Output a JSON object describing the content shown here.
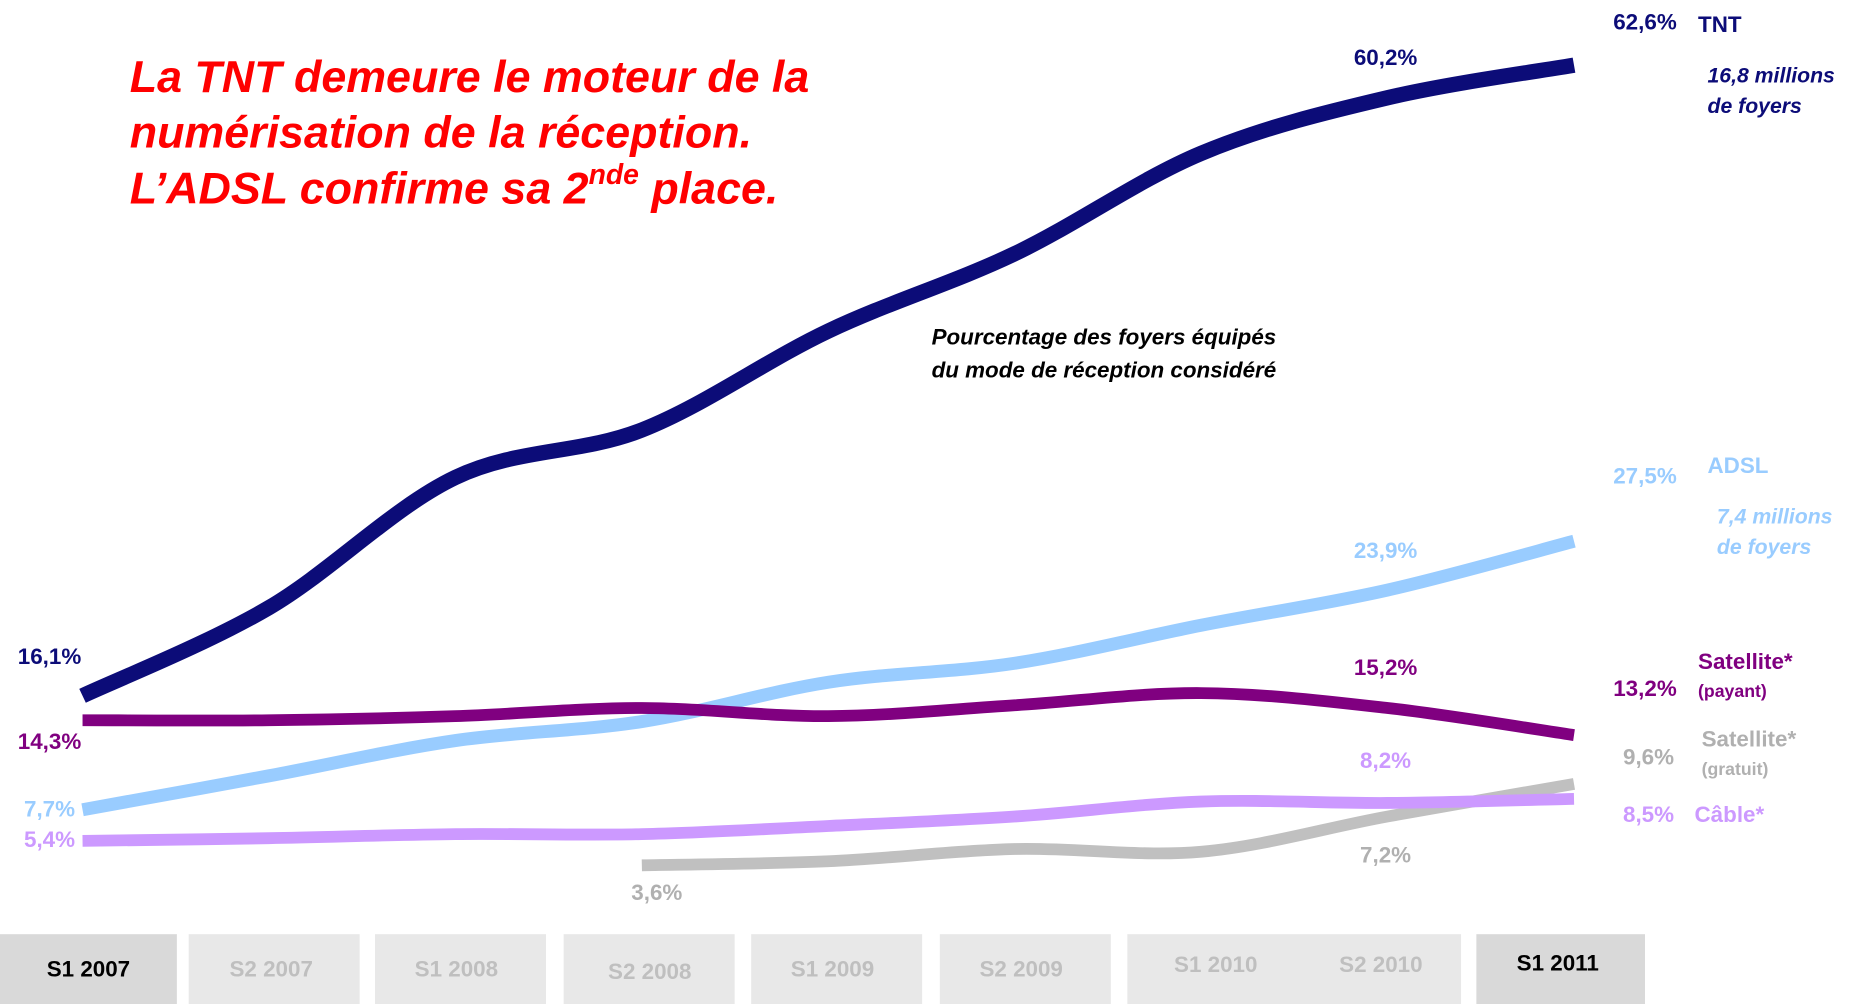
{
  "chart_data": {
    "type": "line",
    "title_lines": [
      "La TNT demeure le moteur de la",
      "numérisation de la réception."
    ],
    "title_last": [
      "L’ADSL confirme sa 2",
      "nde",
      " place."
    ],
    "subtitle_lines": [
      "Pourcentage des foyers équipés",
      "du mode de réception considéré"
    ],
    "categories": [
      "S1 2007",
      "S2 2007",
      "S1 2008",
      "S2 2008",
      "S1 2009",
      "S2 2009",
      "S1 2010",
      "S2 2010",
      "S1 2011"
    ],
    "highlighted": [
      0,
      8
    ],
    "series": [
      {
        "name": "TNT",
        "color": "#0c0c78",
        "note": [
          "16,8 millions",
          "de foyers"
        ],
        "values": [
          16.1,
          22.6,
          32.2,
          35.7,
          43.0,
          48.7,
          56.1,
          60.2,
          62.6
        ],
        "value_labels": [
          "16,1%",
          null,
          null,
          null,
          null,
          null,
          null,
          "60,2%",
          "62,6%"
        ]
      },
      {
        "name": "ADSL",
        "color": "#99ccff",
        "note": [
          "7,4 millions",
          "de foyers"
        ],
        "values": [
          7.7,
          10.2,
          12.8,
          14.2,
          17.1,
          18.5,
          21.3,
          23.9,
          27.5
        ],
        "value_labels": [
          "7,7%",
          null,
          null,
          null,
          null,
          null,
          null,
          "23,9%",
          "27,5%"
        ]
      },
      {
        "name": "Satellite*",
        "sub": "(payant)",
        "color": "#800080",
        "values": [
          14.3,
          14.3,
          14.6,
          15.2,
          14.6,
          15.4,
          16.3,
          15.2,
          13.2
        ],
        "value_labels": [
          "14,3%",
          null,
          null,
          null,
          null,
          null,
          null,
          "15,2%",
          "13,2%"
        ]
      },
      {
        "name": "Satellite*",
        "sub": "(gratuit)",
        "color": "#c0c0c0",
        "values": [
          null,
          null,
          null,
          3.6,
          3.9,
          4.8,
          4.6,
          7.2,
          9.6
        ],
        "value_labels": [
          null,
          null,
          null,
          "3,6%",
          null,
          null,
          null,
          "7,2%",
          "9,6%"
        ]
      },
      {
        "name": "Câble*",
        "color": "#cc99ff",
        "values": [
          5.4,
          5.6,
          5.9,
          5.9,
          6.5,
          7.2,
          8.3,
          8.2,
          8.5
        ],
        "value_labels": [
          "5,4%",
          null,
          null,
          null,
          null,
          null,
          null,
          "8,2%",
          "8,5%"
        ]
      }
    ]
  }
}
